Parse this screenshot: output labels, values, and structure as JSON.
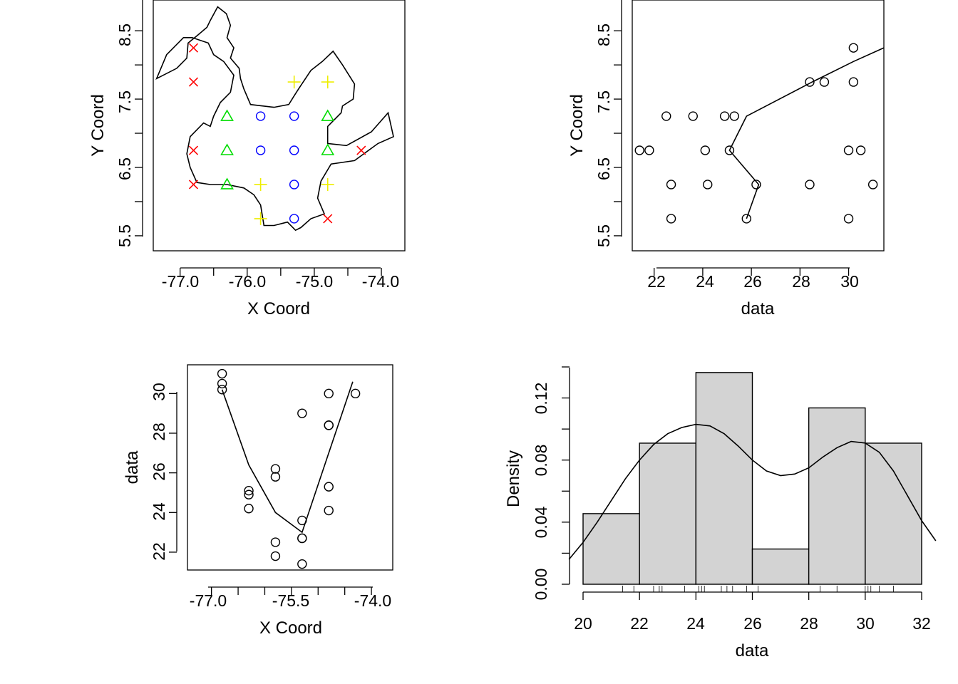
{
  "colors": {
    "red": "#ff0000",
    "blue": "#0000ff",
    "green": "#00dd00",
    "yellow": "#eeee00",
    "hist_fill": "#d3d3d3"
  },
  "chart_data": [
    {
      "type": "scatter",
      "title": "",
      "xlabel": "X Coord",
      "ylabel": "Y Coord",
      "xlim": [
        -77.4,
        -73.65
      ],
      "ylim": [
        5.28,
        8.95
      ],
      "xticks": [
        "-77.0",
        "-76.0",
        "-75.0",
        "-74.0"
      ],
      "yticks": [
        "5.5",
        "6.5",
        "7.5",
        "8.5"
      ],
      "boundary": [
        [
          -76.44,
          8.85
        ],
        [
          -76.31,
          8.75
        ],
        [
          -76.25,
          8.58
        ],
        [
          -76.3,
          8.4
        ],
        [
          -76.2,
          8.25
        ],
        [
          -76.25,
          8.1
        ],
        [
          -76.12,
          7.95
        ],
        [
          -76.1,
          7.8
        ],
        [
          -76.05,
          7.65
        ],
        [
          -75.95,
          7.42
        ],
        [
          -75.6,
          7.38
        ],
        [
          -75.38,
          7.42
        ],
        [
          -75.28,
          7.58
        ],
        [
          -75.2,
          7.7
        ],
        [
          -75.05,
          7.92
        ],
        [
          -74.88,
          8.05
        ],
        [
          -74.72,
          8.2
        ],
        [
          -74.58,
          8.0
        ],
        [
          -74.4,
          7.72
        ],
        [
          -74.42,
          7.5
        ],
        [
          -74.58,
          7.4
        ],
        [
          -74.6,
          7.3
        ],
        [
          -74.8,
          7.1
        ],
        [
          -74.8,
          6.85
        ],
        [
          -74.52,
          6.82
        ],
        [
          -74.15,
          7.02
        ],
        [
          -73.9,
          7.3
        ],
        [
          -73.82,
          6.95
        ],
        [
          -74.05,
          6.85
        ],
        [
          -74.4,
          6.6
        ],
        [
          -74.75,
          6.55
        ],
        [
          -74.9,
          6.3
        ],
        [
          -74.95,
          6.05
        ],
        [
          -74.85,
          5.82
        ],
        [
          -75.05,
          5.75
        ],
        [
          -75.2,
          5.62
        ],
        [
          -75.28,
          5.58
        ],
        [
          -75.4,
          5.7
        ],
        [
          -75.6,
          5.65
        ],
        [
          -75.75,
          5.65
        ],
        [
          -75.8,
          5.95
        ],
        [
          -75.9,
          6.1
        ],
        [
          -76.05,
          6.2
        ],
        [
          -76.3,
          6.25
        ],
        [
          -76.55,
          6.25
        ],
        [
          -76.75,
          6.28
        ],
        [
          -76.85,
          6.5
        ],
        [
          -76.9,
          6.7
        ],
        [
          -76.85,
          6.95
        ],
        [
          -76.75,
          7.05
        ],
        [
          -76.65,
          7.15
        ],
        [
          -76.55,
          7.1
        ],
        [
          -76.5,
          7.25
        ],
        [
          -76.4,
          7.45
        ],
        [
          -76.25,
          7.6
        ],
        [
          -76.2,
          7.85
        ],
        [
          -76.35,
          8.05
        ],
        [
          -76.5,
          8.15
        ],
        [
          -76.58,
          8.32
        ],
        [
          -76.82,
          8.4
        ],
        [
          -76.95,
          8.4
        ],
        [
          -77.2,
          8.15
        ],
        [
          -77.35,
          7.8
        ],
        [
          -77.05,
          7.95
        ],
        [
          -76.9,
          8.1
        ],
        [
          -76.88,
          8.32
        ],
        [
          -76.72,
          8.45
        ],
        [
          -76.6,
          8.55
        ],
        [
          -76.55,
          8.65
        ],
        [
          -76.44,
          8.85
        ]
      ],
      "points": [
        {
          "x": -76.8,
          "y": 8.25,
          "marker": "x",
          "color": "red"
        },
        {
          "x": -76.8,
          "y": 7.75,
          "marker": "x",
          "color": "red"
        },
        {
          "x": -76.8,
          "y": 6.75,
          "marker": "x",
          "color": "red"
        },
        {
          "x": -76.8,
          "y": 6.25,
          "marker": "x",
          "color": "red"
        },
        {
          "x": -74.8,
          "y": 5.75,
          "marker": "x",
          "color": "red"
        },
        {
          "x": -74.3,
          "y": 6.75,
          "marker": "x",
          "color": "red"
        },
        {
          "x": -75.3,
          "y": 7.75,
          "marker": "plus",
          "color": "yellow"
        },
        {
          "x": -74.8,
          "y": 7.75,
          "marker": "plus",
          "color": "yellow"
        },
        {
          "x": -75.8,
          "y": 6.25,
          "marker": "plus",
          "color": "yellow"
        },
        {
          "x": -74.8,
          "y": 6.25,
          "marker": "plus",
          "color": "yellow"
        },
        {
          "x": -75.8,
          "y": 5.75,
          "marker": "plus",
          "color": "yellow"
        },
        {
          "x": -76.3,
          "y": 7.25,
          "marker": "triangle",
          "color": "green"
        },
        {
          "x": -74.8,
          "y": 7.25,
          "marker": "triangle",
          "color": "green"
        },
        {
          "x": -76.3,
          "y": 6.75,
          "marker": "triangle",
          "color": "green"
        },
        {
          "x": -74.8,
          "y": 6.75,
          "marker": "triangle",
          "color": "green"
        },
        {
          "x": -76.3,
          "y": 6.25,
          "marker": "triangle",
          "color": "green"
        },
        {
          "x": -75.8,
          "y": 7.25,
          "marker": "circle",
          "color": "blue"
        },
        {
          "x": -75.3,
          "y": 7.25,
          "marker": "circle",
          "color": "blue"
        },
        {
          "x": -75.8,
          "y": 6.75,
          "marker": "circle",
          "color": "blue"
        },
        {
          "x": -75.3,
          "y": 6.75,
          "marker": "circle",
          "color": "blue"
        },
        {
          "x": -75.3,
          "y": 6.25,
          "marker": "circle",
          "color": "blue"
        },
        {
          "x": -75.3,
          "y": 5.75,
          "marker": "circle",
          "color": "blue"
        }
      ]
    },
    {
      "type": "scatter",
      "title": "",
      "xlabel": "data",
      "ylabel": "Y Coord",
      "xlim": [
        21.1,
        31.45
      ],
      "ylim": [
        5.28,
        8.95
      ],
      "xticks": [
        "22",
        "24",
        "26",
        "28",
        "30"
      ],
      "yticks": [
        "5.5",
        "6.5",
        "7.5",
        "8.5"
      ],
      "points": [
        [
          21.4,
          6.75
        ],
        [
          21.8,
          6.75
        ],
        [
          22.5,
          7.25
        ],
        [
          22.7,
          6.25
        ],
        [
          22.7,
          5.75
        ],
        [
          23.6,
          7.25
        ],
        [
          24.1,
          6.75
        ],
        [
          24.2,
          6.25
        ],
        [
          24.9,
          7.25
        ],
        [
          25.1,
          6.75
        ],
        [
          25.3,
          7.25
        ],
        [
          25.8,
          5.75
        ],
        [
          26.2,
          6.25
        ],
        [
          28.4,
          7.75
        ],
        [
          28.4,
          6.25
        ],
        [
          29.0,
          7.75
        ],
        [
          30.0,
          6.75
        ],
        [
          30.0,
          5.75
        ],
        [
          30.2,
          8.25
        ],
        [
          30.2,
          7.75
        ],
        [
          30.5,
          6.75
        ],
        [
          31.0,
          6.25
        ]
      ],
      "smooth_line": [
        [
          25.8,
          5.75
        ],
        [
          26.3,
          6.25
        ],
        [
          25.1,
          6.75
        ],
        [
          25.8,
          7.25
        ],
        [
          28.5,
          7.75
        ],
        [
          30.2,
          8.05
        ],
        [
          31.45,
          8.25
        ]
      ]
    },
    {
      "type": "scatter",
      "title": "",
      "xlabel": "X Coord",
      "ylabel": "data",
      "xlim": [
        -77.45,
        -73.6
      ],
      "ylim": [
        21.1,
        31.45
      ],
      "xticks": [
        "-77.0",
        "-75.5",
        "-74.0"
      ],
      "yticks": [
        "22",
        "24",
        "26",
        "28",
        "30"
      ],
      "points": [
        [
          -76.8,
          31.0
        ],
        [
          -76.8,
          30.5
        ],
        [
          -76.8,
          30.2
        ],
        [
          -76.3,
          25.1
        ],
        [
          -76.3,
          24.9
        ],
        [
          -76.3,
          24.2
        ],
        [
          -75.8,
          26.2
        ],
        [
          -75.8,
          25.8
        ],
        [
          -75.8,
          22.5
        ],
        [
          -75.8,
          21.8
        ],
        [
          -75.3,
          29.0
        ],
        [
          -75.3,
          23.6
        ],
        [
          -75.3,
          22.7
        ],
        [
          -75.3,
          22.7
        ],
        [
          -75.3,
          21.4
        ],
        [
          -74.8,
          30.0
        ],
        [
          -74.8,
          28.4
        ],
        [
          -74.8,
          28.4
        ],
        [
          -74.8,
          25.3
        ],
        [
          -74.8,
          24.1
        ],
        [
          -74.3,
          30.0
        ]
      ],
      "smooth_line": [
        [
          -76.8,
          30.2
        ],
        [
          -76.3,
          26.4
        ],
        [
          -75.8,
          24.0
        ],
        [
          -75.3,
          23.0
        ],
        [
          -74.8,
          27.0
        ],
        [
          -74.35,
          30.6
        ]
      ]
    },
    {
      "type": "bar",
      "title": "",
      "xlabel": "data",
      "ylabel": "Density",
      "xlim": [
        20,
        32
      ],
      "ylim": [
        0,
        0.14
      ],
      "xticks": [
        "20",
        "22",
        "24",
        "26",
        "28",
        "30",
        "32"
      ],
      "yticks": [
        "0.00",
        "0.04",
        "0.08",
        "0.12"
      ],
      "bins": [
        20,
        22,
        24,
        26,
        28,
        30,
        32
      ],
      "densities": [
        0.0455,
        0.0909,
        0.1364,
        0.0227,
        0.1136,
        0.0909
      ],
      "rug": [
        21.4,
        21.8,
        22.5,
        22.7,
        22.8,
        23.6,
        24.1,
        24.2,
        24.3,
        24.9,
        25.1,
        25.3,
        25.8,
        26.2,
        28.4,
        29.0,
        30.0,
        30.1,
        30.2,
        30.5,
        31.0
      ],
      "density_curve": [
        [
          19.5,
          0.016
        ],
        [
          20,
          0.027
        ],
        [
          20.5,
          0.04
        ],
        [
          21,
          0.054
        ],
        [
          21.5,
          0.068
        ],
        [
          22,
          0.08
        ],
        [
          22.5,
          0.09
        ],
        [
          23,
          0.097
        ],
        [
          23.5,
          0.101
        ],
        [
          24,
          0.103
        ],
        [
          24.5,
          0.102
        ],
        [
          25,
          0.097
        ],
        [
          25.5,
          0.089
        ],
        [
          26,
          0.08
        ],
        [
          26.5,
          0.073
        ],
        [
          27,
          0.07
        ],
        [
          27.5,
          0.071
        ],
        [
          28,
          0.075
        ],
        [
          28.5,
          0.082
        ],
        [
          29,
          0.088
        ],
        [
          29.5,
          0.092
        ],
        [
          30,
          0.091
        ],
        [
          30.5,
          0.085
        ],
        [
          31,
          0.073
        ],
        [
          31.5,
          0.057
        ],
        [
          32,
          0.041
        ],
        [
          32.5,
          0.028
        ]
      ]
    }
  ]
}
